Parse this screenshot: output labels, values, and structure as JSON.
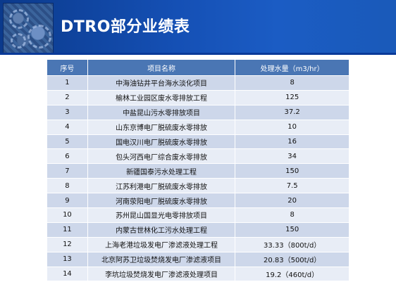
{
  "slide": {
    "title": "DTRO部分业绩表"
  },
  "table": {
    "headers": [
      "序号",
      "项目名称",
      "处理水量（m3/hr）"
    ],
    "rows": [
      [
        "1",
        "中海油钻井平台海水淡化项目",
        "8"
      ],
      [
        "2",
        "榆林工业园区废水零排放工程",
        "125"
      ],
      [
        "3",
        "中盐昆山污水零排放项目",
        "37.2"
      ],
      [
        "4",
        "山东京博电厂脱硫废水零排放",
        "10"
      ],
      [
        "5",
        "国电汉川电厂脱硫废水零排放",
        "16"
      ],
      [
        "6",
        "包头河西电厂综合废水零排放",
        "34"
      ],
      [
        "7",
        "新疆国泰污水处理工程",
        "150"
      ],
      [
        "8",
        "江苏利港电厂脱硫废水零排放",
        "7.5"
      ],
      [
        "9",
        "河南荥阳电厂脱硫废水零排放",
        "20"
      ],
      [
        "10",
        "苏州昆山国显光电零排放项目",
        "8"
      ],
      [
        "11",
        "内蒙古世林化工污水处理工程",
        "150"
      ],
      [
        "12",
        "上海老港垃圾发电厂渗滤液处理工程",
        "33.33（800t/d）"
      ],
      [
        "13",
        "北京阿苏卫垃圾焚烧发电厂渗滤液项目",
        "20.83（500t/d）"
      ],
      [
        "14",
        "李坑垃圾焚烧发电厂渗滤液处理项目",
        "19.2（460t/d）"
      ]
    ]
  }
}
